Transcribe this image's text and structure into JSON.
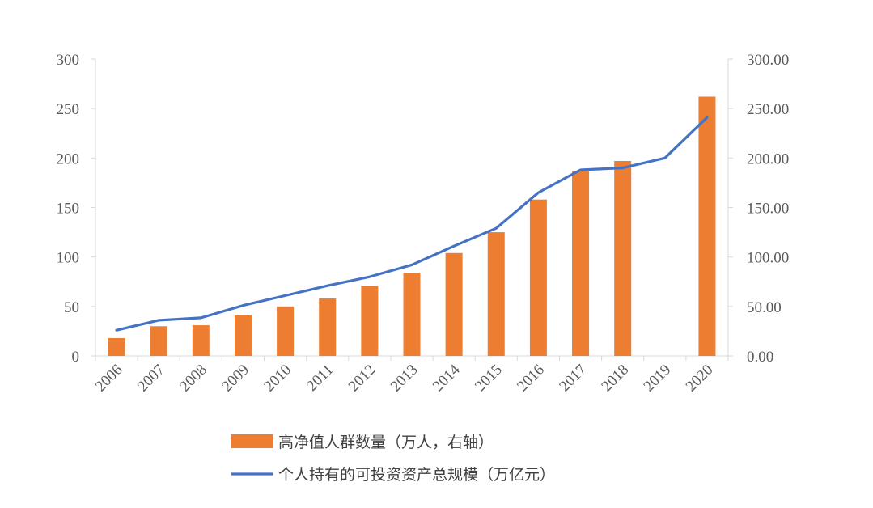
{
  "chart_data": {
    "type": "bar",
    "categories": [
      "2006",
      "2007",
      "2008",
      "2009",
      "2010",
      "2011",
      "2012",
      "2013",
      "2014",
      "2015",
      "2016",
      "2017",
      "2018",
      "2019",
      "2020"
    ],
    "series": [
      {
        "name": "高净值人群数量（万人，右轴）",
        "type": "bar",
        "axis": "left",
        "color": "#ED7D31",
        "values": [
          18,
          30,
          31,
          41,
          50,
          58,
          71,
          84,
          104,
          125,
          158,
          187,
          197,
          null,
          262
        ]
      },
      {
        "name": "个人持有的可投资资产总规模（万亿元）",
        "type": "line",
        "axis": "right",
        "color": "#4472C4",
        "values": [
          26,
          36,
          38.5,
          51,
          61,
          71,
          80,
          92,
          111,
          129,
          165,
          188,
          190,
          200,
          241
        ]
      }
    ],
    "y_left": {
      "min": 0,
      "max": 300,
      "step": 50,
      "tick_labels": [
        "0",
        "50",
        "100",
        "150",
        "200",
        "250",
        "300"
      ]
    },
    "y_right": {
      "min": 0,
      "max": 300,
      "step": 50,
      "tick_labels": [
        "0.00",
        "50.00",
        "100.00",
        "150.00",
        "200.00",
        "250.00",
        "300.00"
      ]
    },
    "xlabel": "",
    "ylabel": "",
    "title": "",
    "grid": false,
    "legend_position": "bottom"
  }
}
